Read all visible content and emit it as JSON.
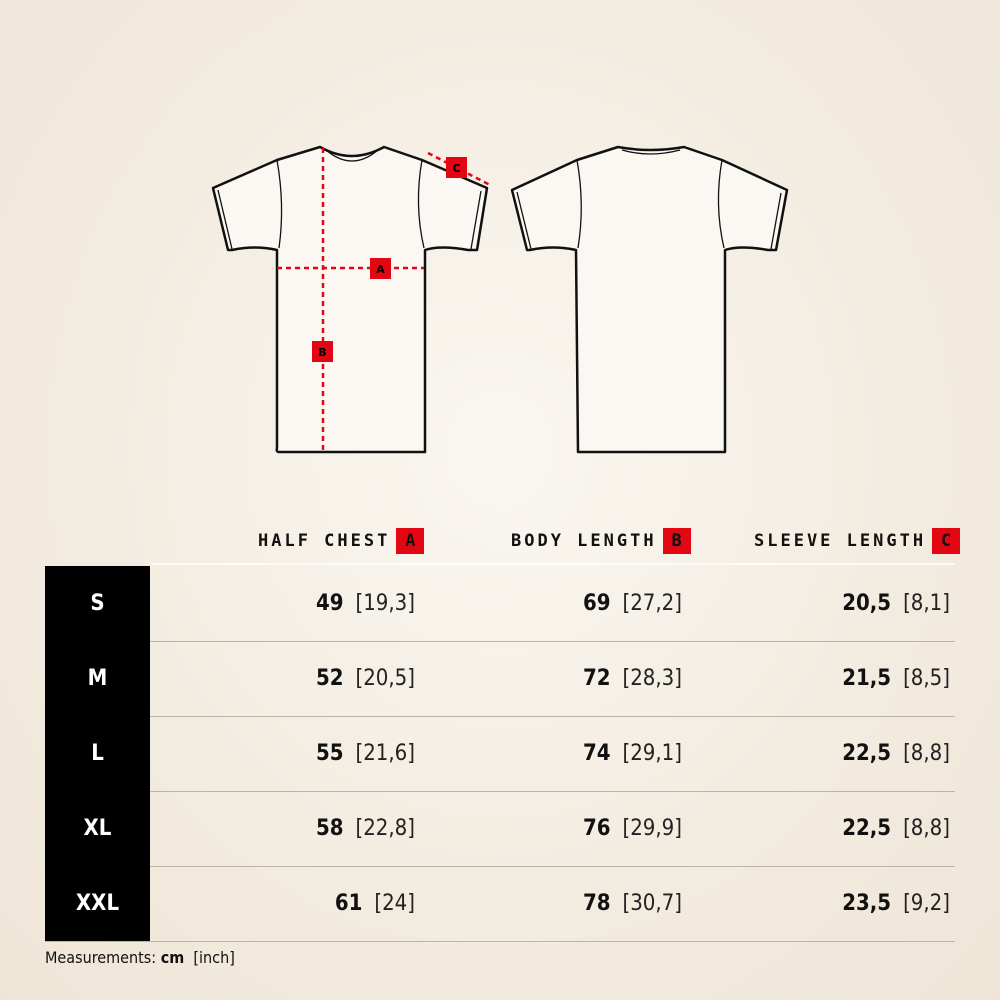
{
  "diagram": {
    "labels": [
      "A",
      "B",
      "C"
    ],
    "marker_color": "#e30613"
  },
  "headers": [
    {
      "label": "HALF CHEST",
      "tag": "A"
    },
    {
      "label": "BODY LENGTH",
      "tag": "B"
    },
    {
      "label": "SLEEVE LENGTH",
      "tag": "C"
    }
  ],
  "rows": [
    {
      "size": "S",
      "chest_cm": "49",
      "chest_in": "[19,3]",
      "body_cm": "69",
      "body_in": "[27,2]",
      "sleeve_cm": "20,5",
      "sleeve_in": "[8,1]"
    },
    {
      "size": "M",
      "chest_cm": "52",
      "chest_in": "[20,5]",
      "body_cm": "72",
      "body_in": "[28,3]",
      "sleeve_cm": "21,5",
      "sleeve_in": "[8,5]"
    },
    {
      "size": "L",
      "chest_cm": "55",
      "chest_in": "[21,6]",
      "body_cm": "74",
      "body_in": "[29,1]",
      "sleeve_cm": "22,5",
      "sleeve_in": "[8,8]"
    },
    {
      "size": "XL",
      "chest_cm": "58",
      "chest_in": "[22,8]",
      "body_cm": "76",
      "body_in": "[29,9]",
      "sleeve_cm": "22,5",
      "sleeve_in": "[8,8]"
    },
    {
      "size": "XXL",
      "chest_cm": "61",
      "chest_in": "[24]",
      "body_cm": "78",
      "body_in": "[30,7]",
      "sleeve_cm": "23,5",
      "sleeve_in": "[9,2]"
    }
  ],
  "footer": {
    "prefix": "Measurements:",
    "unit": "cm",
    "alt_unit": "[inch]"
  }
}
